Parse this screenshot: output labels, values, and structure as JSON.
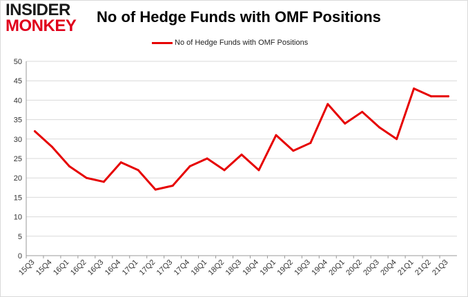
{
  "header": {
    "logo_line1": "INSIDER",
    "logo_line2": "MONKEY",
    "title": "No of Hedge Funds with OMF Positions"
  },
  "colors": {
    "series": "#e60000",
    "grid": "#d9d9d9",
    "axis": "#999999"
  },
  "chart_data": {
    "type": "line",
    "title": "No of Hedge Funds with OMF Positions",
    "xlabel": "",
    "ylabel": "",
    "ylim": [
      0,
      50
    ],
    "yticks": [
      0,
      5,
      10,
      15,
      20,
      25,
      30,
      35,
      40,
      45,
      50
    ],
    "grid": "horizontal",
    "legend_placement": "top-center",
    "categories": [
      "15Q3",
      "15Q4",
      "16Q1",
      "16Q2",
      "16Q3",
      "16Q4",
      "17Q1",
      "17Q2",
      "17Q3",
      "17Q4",
      "18Q1",
      "18Q2",
      "18Q3",
      "18Q4",
      "19Q1",
      "19Q2",
      "19Q3",
      "19Q4",
      "20Q1",
      "20Q2",
      "20Q3",
      "20Q4",
      "21Q1",
      "21Q2",
      "21Q3"
    ],
    "series": [
      {
        "name": "No of Hedge Funds with OMF Positions",
        "values": [
          32,
          28,
          23,
          20,
          19,
          24,
          22,
          17,
          18,
          23,
          25,
          22,
          26,
          22,
          31,
          27,
          29,
          39,
          34,
          37,
          33,
          30,
          43,
          41,
          41
        ]
      }
    ]
  }
}
